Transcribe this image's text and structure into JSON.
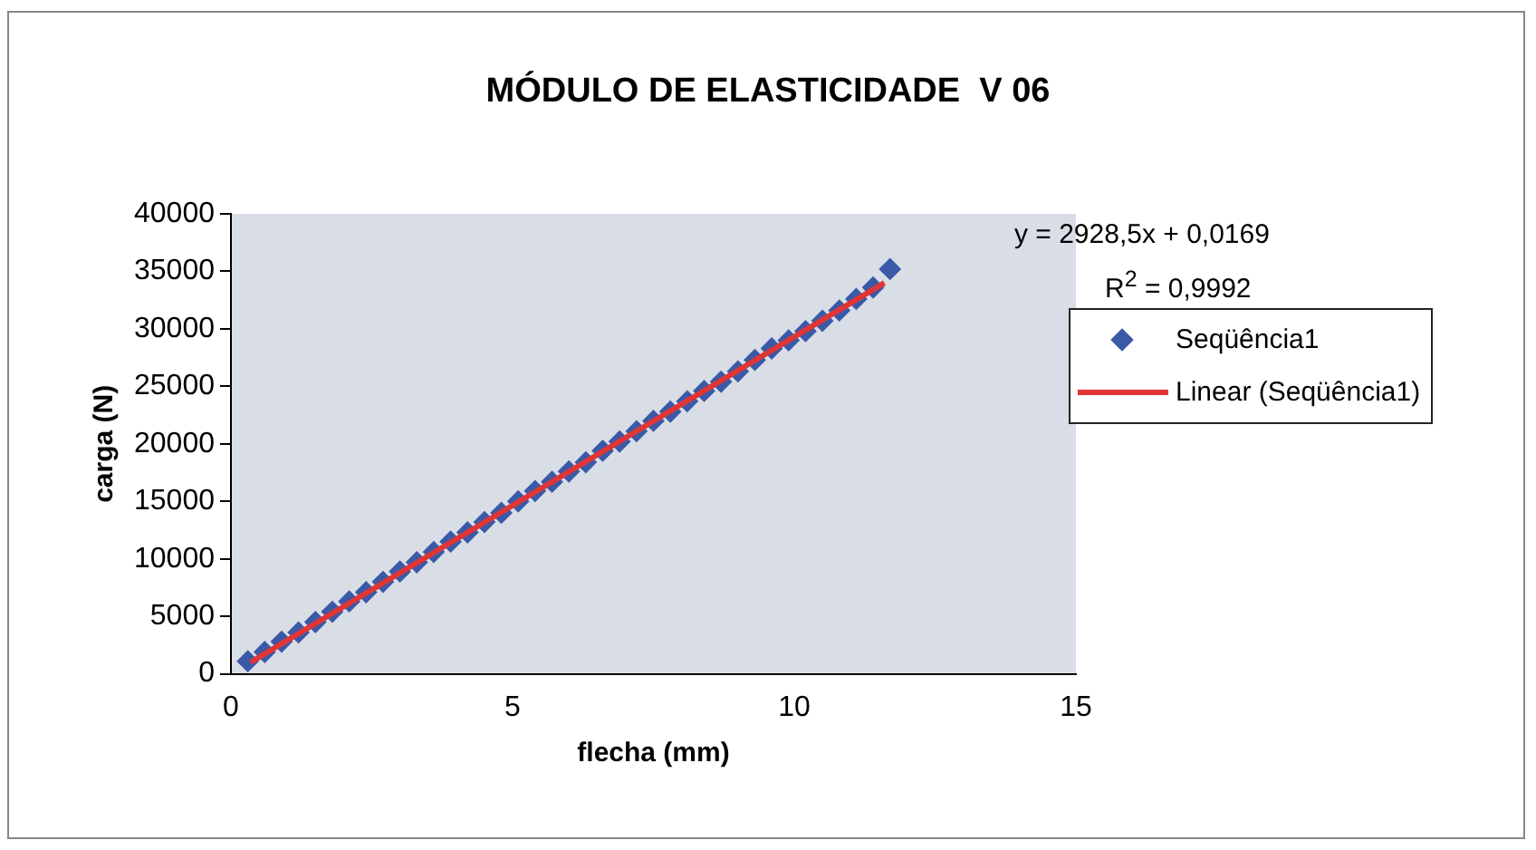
{
  "chart_data": {
    "type": "scatter",
    "title": "MÓDULO DE ELASTICIDADE  V 06",
    "xlabel": "flecha (mm)",
    "ylabel": "carga (N)",
    "xlim": [
      0,
      15
    ],
    "xticks": [
      0,
      5,
      10,
      15
    ],
    "ylim": [
      0,
      40000
    ],
    "yticks": [
      0,
      5000,
      10000,
      15000,
      20000,
      25000,
      30000,
      35000,
      40000
    ],
    "grid": false,
    "legend": "right",
    "annotations": [
      "y = 2928,5x + 0,0169",
      "R$^{2}$ = 0,9992"
    ],
    "series": [
      {
        "name": "Seqüência1",
        "marker": "diamond",
        "color": "#3a5aa8",
        "x": [
          0.3,
          0.6,
          0.9,
          1.2,
          1.5,
          1.8,
          2.1,
          2.4,
          2.7,
          3.0,
          3.3,
          3.6,
          3.9,
          4.2,
          4.5,
          4.8,
          5.1,
          5.4,
          5.7,
          6.0,
          6.3,
          6.6,
          6.9,
          7.2,
          7.5,
          7.8,
          8.1,
          8.4,
          8.7,
          9.0,
          9.3,
          9.6,
          9.9,
          10.2,
          10.5,
          10.8,
          11.1,
          11.4,
          11.7
        ],
        "values": [
          1100,
          1900,
          2800,
          3600,
          4500,
          5400,
          6300,
          7100,
          8000,
          8900,
          9700,
          10600,
          11500,
          12300,
          13200,
          14000,
          15000,
          15900,
          16700,
          17600,
          18400,
          19400,
          20200,
          21100,
          22000,
          22800,
          23700,
          24600,
          25400,
          26300,
          27300,
          28300,
          29000,
          29800,
          30700,
          31600,
          32600,
          33600,
          35200
        ]
      },
      {
        "name": "Linear (Seqüência1)",
        "type": "line",
        "color": "#e03535",
        "line_style": "solid",
        "x": [
          0.35,
          11.6
        ],
        "values": [
          1000,
          34000
        ]
      }
    ]
  }
}
